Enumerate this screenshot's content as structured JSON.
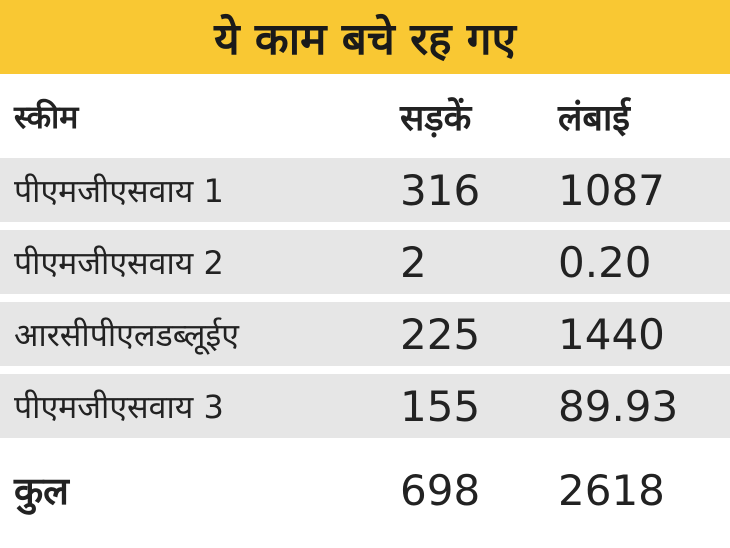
{
  "header": {
    "title": "ये काम बचे रह गए"
  },
  "table": {
    "columns": [
      "स्कीम",
      "सड़कें",
      "लंबाई"
    ],
    "rows": [
      [
        "पीएमजीएसवाय 1",
        "316",
        "1087"
      ],
      [
        "पीएमजीएसवाय 2",
        "2",
        "0.20"
      ],
      [
        "आरसीपीएलडब्लूईए",
        "225",
        "1440"
      ],
      [
        "पीएमजीएसवाय 3",
        "155",
        "89.93"
      ]
    ],
    "total": [
      "कुल",
      "698",
      "2618"
    ]
  }
}
